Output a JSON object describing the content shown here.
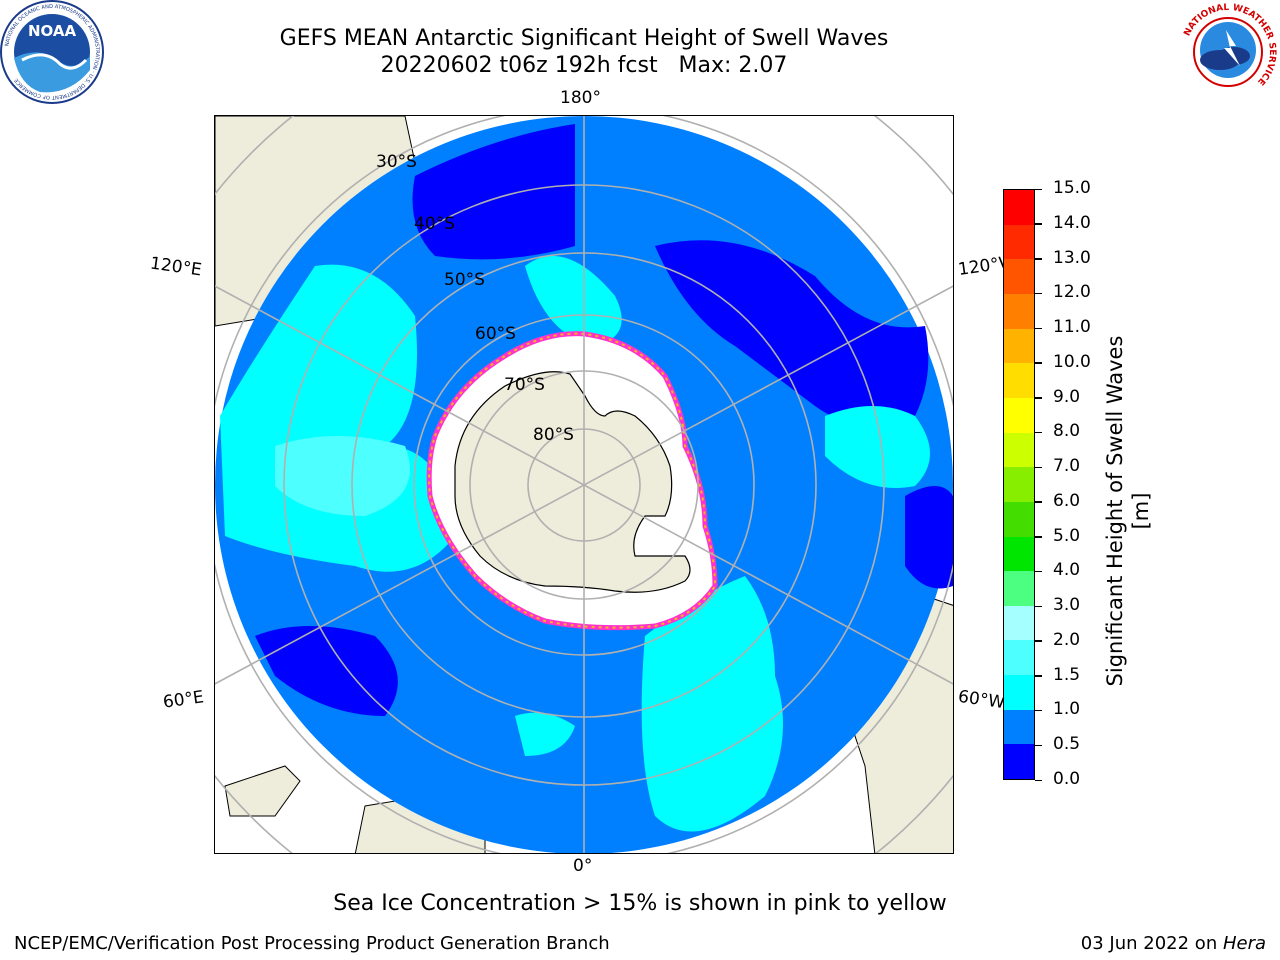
{
  "header": {
    "title": "GEFS MEAN Antarctic Significant Height of Swell Waves",
    "subtitle": "20220602 t06z 192h fcst   Max: 2.07"
  },
  "logos": {
    "left": {
      "name": "noaa-logo",
      "text": "NOAA",
      "ring_text": "NATIONAL OCEANIC AND ATMOSPHERIC ADMINISTRATION · U.S. DEPARTMENT OF COMMERCE"
    },
    "right": {
      "name": "nws-logo",
      "ring_text": "NATIONAL WEATHER SERVICE"
    }
  },
  "map": {
    "projection": "south-polar-stereographic",
    "lon_labels": {
      "top": "180°",
      "bottom": "0°",
      "upper_left": "120°E",
      "upper_right": "120°W",
      "lower_left": "60°E",
      "lower_right": "60°W"
    },
    "lat_labels": [
      "30°S",
      "40°S",
      "50°S",
      "60°S",
      "70°S",
      "80°S"
    ],
    "colors": {
      "land": "#eeecdb",
      "sea_ice": "#ffffff",
      "ice_edge": "#ff33cc",
      "ice_edge_inner": "#ffb020",
      "grid": "#b0b0b0"
    }
  },
  "colorbar": {
    "label": "Significant Height of Swell Waves [m]",
    "ticks": [
      "0.0",
      "0.5",
      "1.0",
      "1.5",
      "2.0",
      "3.0",
      "4.0",
      "5.0",
      "6.0",
      "7.0",
      "8.0",
      "9.0",
      "10.0",
      "11.0",
      "12.0",
      "13.0",
      "14.0",
      "15.0"
    ],
    "colors": [
      "#0000ff",
      "#0080ff",
      "#00ffff",
      "#4dffff",
      "#a6ffff",
      "#4dff80",
      "#00e600",
      "#44dd00",
      "#88ee00",
      "#ccff00",
      "#ffff00",
      "#ffdd00",
      "#ffb300",
      "#ff8000",
      "#ff5500",
      "#ff2a00",
      "#ff0000"
    ]
  },
  "footer": {
    "note": "Sea Ice Concentration > 15% is shown in pink to yellow",
    "credit": "NCEP/EMC/Verification Post Processing Product Generation Branch",
    "date": "03 Jun 2022 on ",
    "machine": "Hera"
  }
}
